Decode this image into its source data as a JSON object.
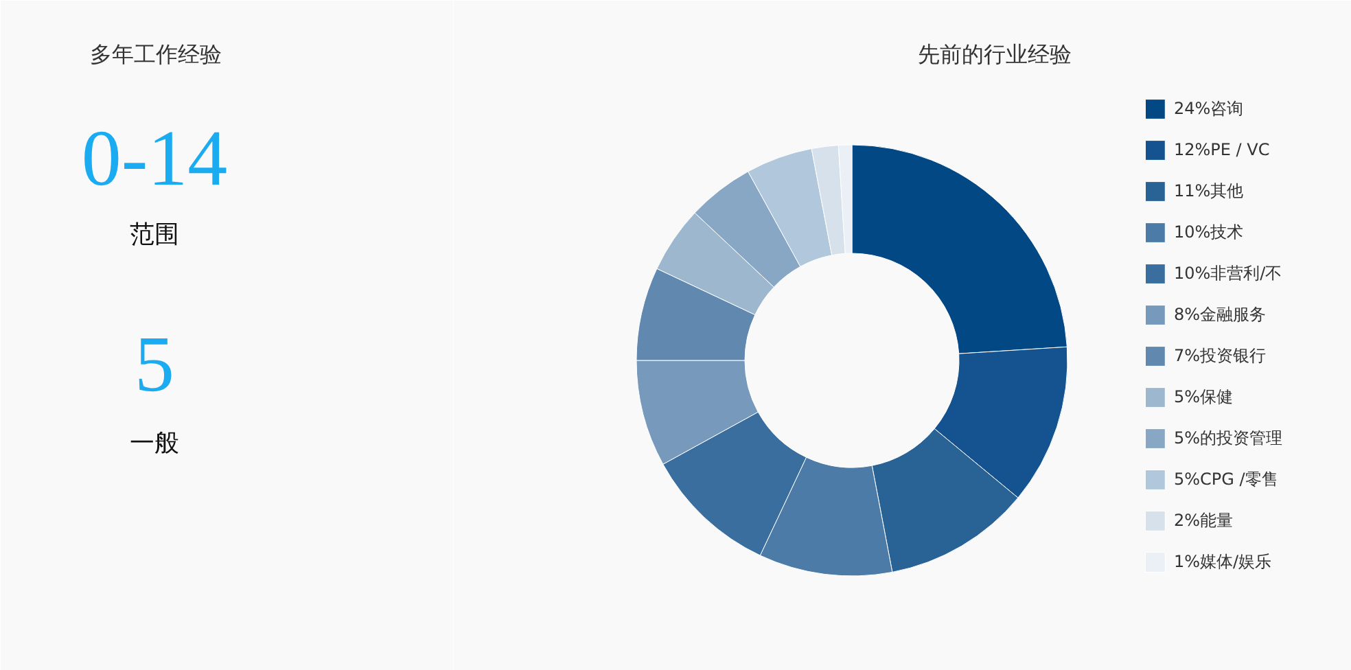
{
  "chart_data": [
    {
      "type": "other",
      "title": "多年工作经验",
      "annotations": [
        "0-14",
        "范围",
        "5",
        "一般"
      ]
    },
    {
      "type": "donut",
      "title": "先前的行业经验",
      "categories": [
        "24%咨询",
        "12%PE / VC",
        "11%其他",
        "10%技术",
        "10%非营利/不",
        "8%金融服务",
        "7%投资银行",
        "5%保健",
        "5%的投资管理",
        "5%CPG /零售",
        "2%能量",
        "1%媒体/娱乐"
      ],
      "values": [
        24,
        12,
        11,
        10,
        10,
        8,
        7,
        5,
        5,
        5,
        2,
        1
      ],
      "colors": [
        "#024884",
        "#14538f",
        "#296396",
        "#4c7ba8",
        "#3a6e9e",
        "#7699bc",
        "#6189b0",
        "#9db7cf",
        "#87a7c5",
        "#b1c7db",
        "#d7e1ec",
        "#eaf0f6"
      ],
      "legend": "right"
    }
  ]
}
